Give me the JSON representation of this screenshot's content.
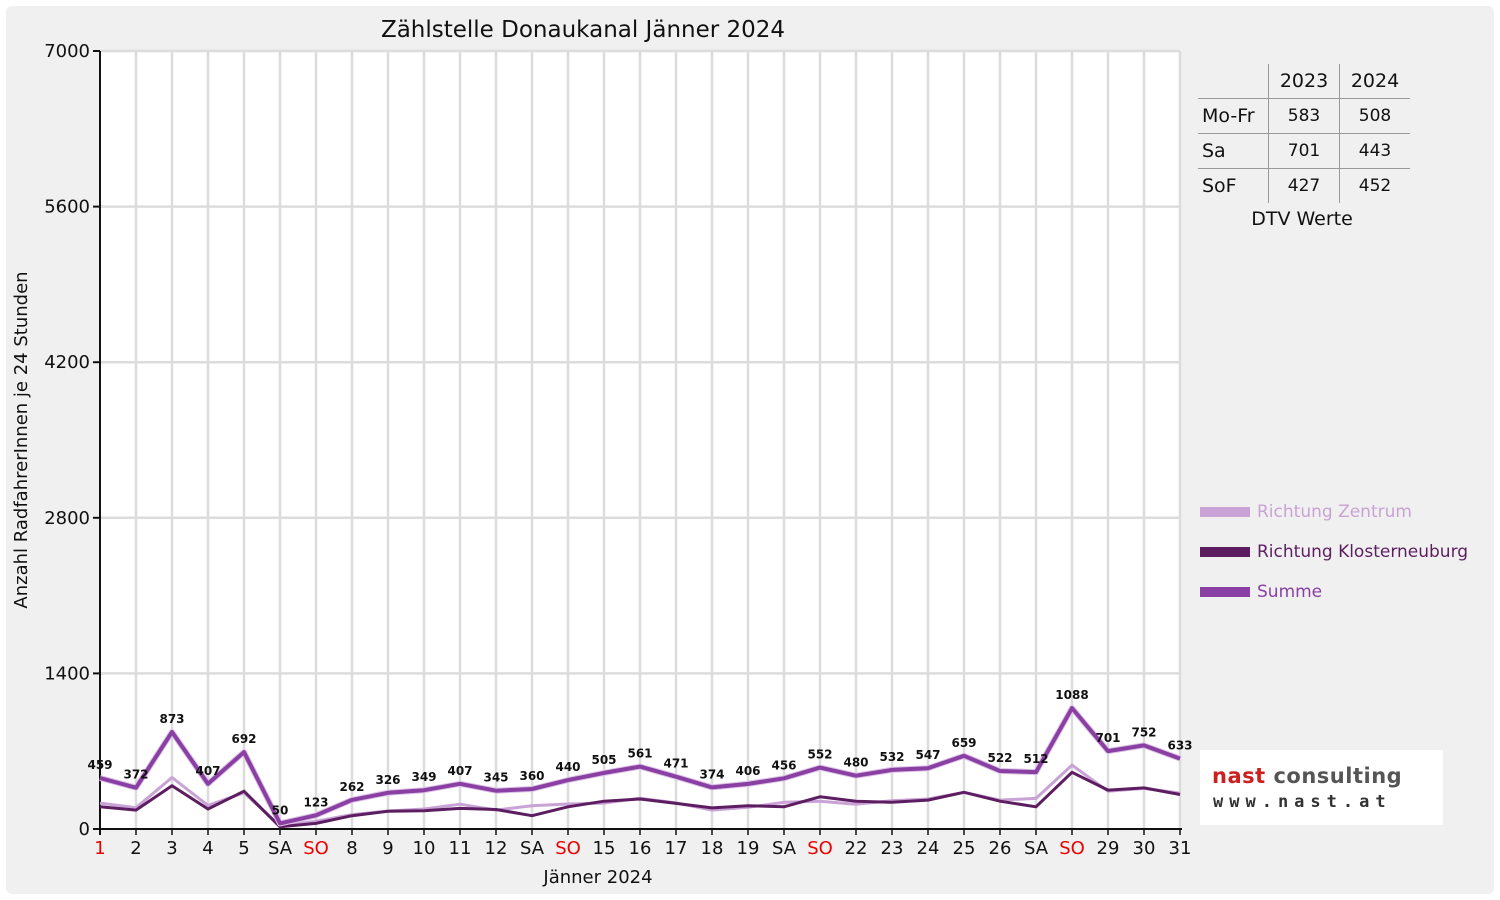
{
  "chart_data": {
    "type": "line",
    "title": "Zählstelle Donaukanal Jänner 2024",
    "xlabel": "Jänner 2024",
    "ylabel": "Anzahl RadfahrerInnen je 24 Stunden",
    "ylim": [
      0,
      7000
    ],
    "yticks": [
      0,
      1400,
      2800,
      4200,
      5600,
      7000
    ],
    "grid": true,
    "legend_position": "right",
    "categories": [
      "1",
      "2",
      "3",
      "4",
      "5",
      "SA",
      "SO",
      "8",
      "9",
      "10",
      "11",
      "12",
      "SA",
      "SO",
      "15",
      "16",
      "17",
      "18",
      "19",
      "SA",
      "SO",
      "22",
      "23",
      "24",
      "25",
      "26",
      "SA",
      "SO",
      "29",
      "30",
      "31"
    ],
    "category_colors": [
      "#ee0000",
      "#111111",
      "#111111",
      "#111111",
      "#111111",
      "#111111",
      "#ee0000",
      "#111111",
      "#111111",
      "#111111",
      "#111111",
      "#111111",
      "#111111",
      "#ee0000",
      "#111111",
      "#111111",
      "#111111",
      "#111111",
      "#111111",
      "#111111",
      "#ee0000",
      "#111111",
      "#111111",
      "#111111",
      "#111111",
      "#111111",
      "#111111",
      "#ee0000",
      "#111111",
      "#111111",
      "#111111"
    ],
    "series": [
      {
        "name": "Richtung Zentrum",
        "color": "#c9a2d6",
        "values": [
          233,
          192,
          463,
          212,
          326,
          28,
          70,
          130,
          162,
          180,
          223,
          170,
          210,
          225,
          233,
          277,
          235,
          170,
          195,
          240,
          250,
          223,
          255,
          270,
          330,
          260,
          275,
          575,
          340,
          365,
          323
        ]
      },
      {
        "name": "Richtung Klosterneuburg",
        "color": "#5d1e61",
        "values": [
          200,
          170,
          390,
          180,
          340,
          20,
          50,
          120,
          160,
          165,
          185,
          175,
          120,
          200,
          250,
          270,
          230,
          190,
          210,
          200,
          290,
          250,
          240,
          260,
          330,
          250,
          200,
          510,
          350,
          370,
          310
        ]
      },
      {
        "name": "Summe",
        "color": "#8a3fa3",
        "values": [
          459,
          372,
          873,
          407,
          692,
          50,
          123,
          262,
          326,
          349,
          407,
          345,
          360,
          440,
          505,
          561,
          471,
          374,
          406,
          456,
          552,
          480,
          532,
          547,
          659,
          522,
          512,
          1088,
          701,
          752,
          633
        ]
      }
    ],
    "data_labels_series": "Summe"
  },
  "dtv": {
    "years": [
      "2023",
      "2024"
    ],
    "rows": [
      {
        "label": "Mo-Fr",
        "values": [
          "583",
          "508"
        ]
      },
      {
        "label": "Sa",
        "values": [
          "701",
          "443"
        ]
      },
      {
        "label": "SoF",
        "values": [
          "427",
          "452"
        ]
      }
    ],
    "caption": "DTV Werte"
  },
  "logo": {
    "name_part1": "nast",
    "name_part2": "consulting",
    "url": "www.nast.at",
    "color1": "#cc1f1f",
    "color2": "#555555"
  }
}
